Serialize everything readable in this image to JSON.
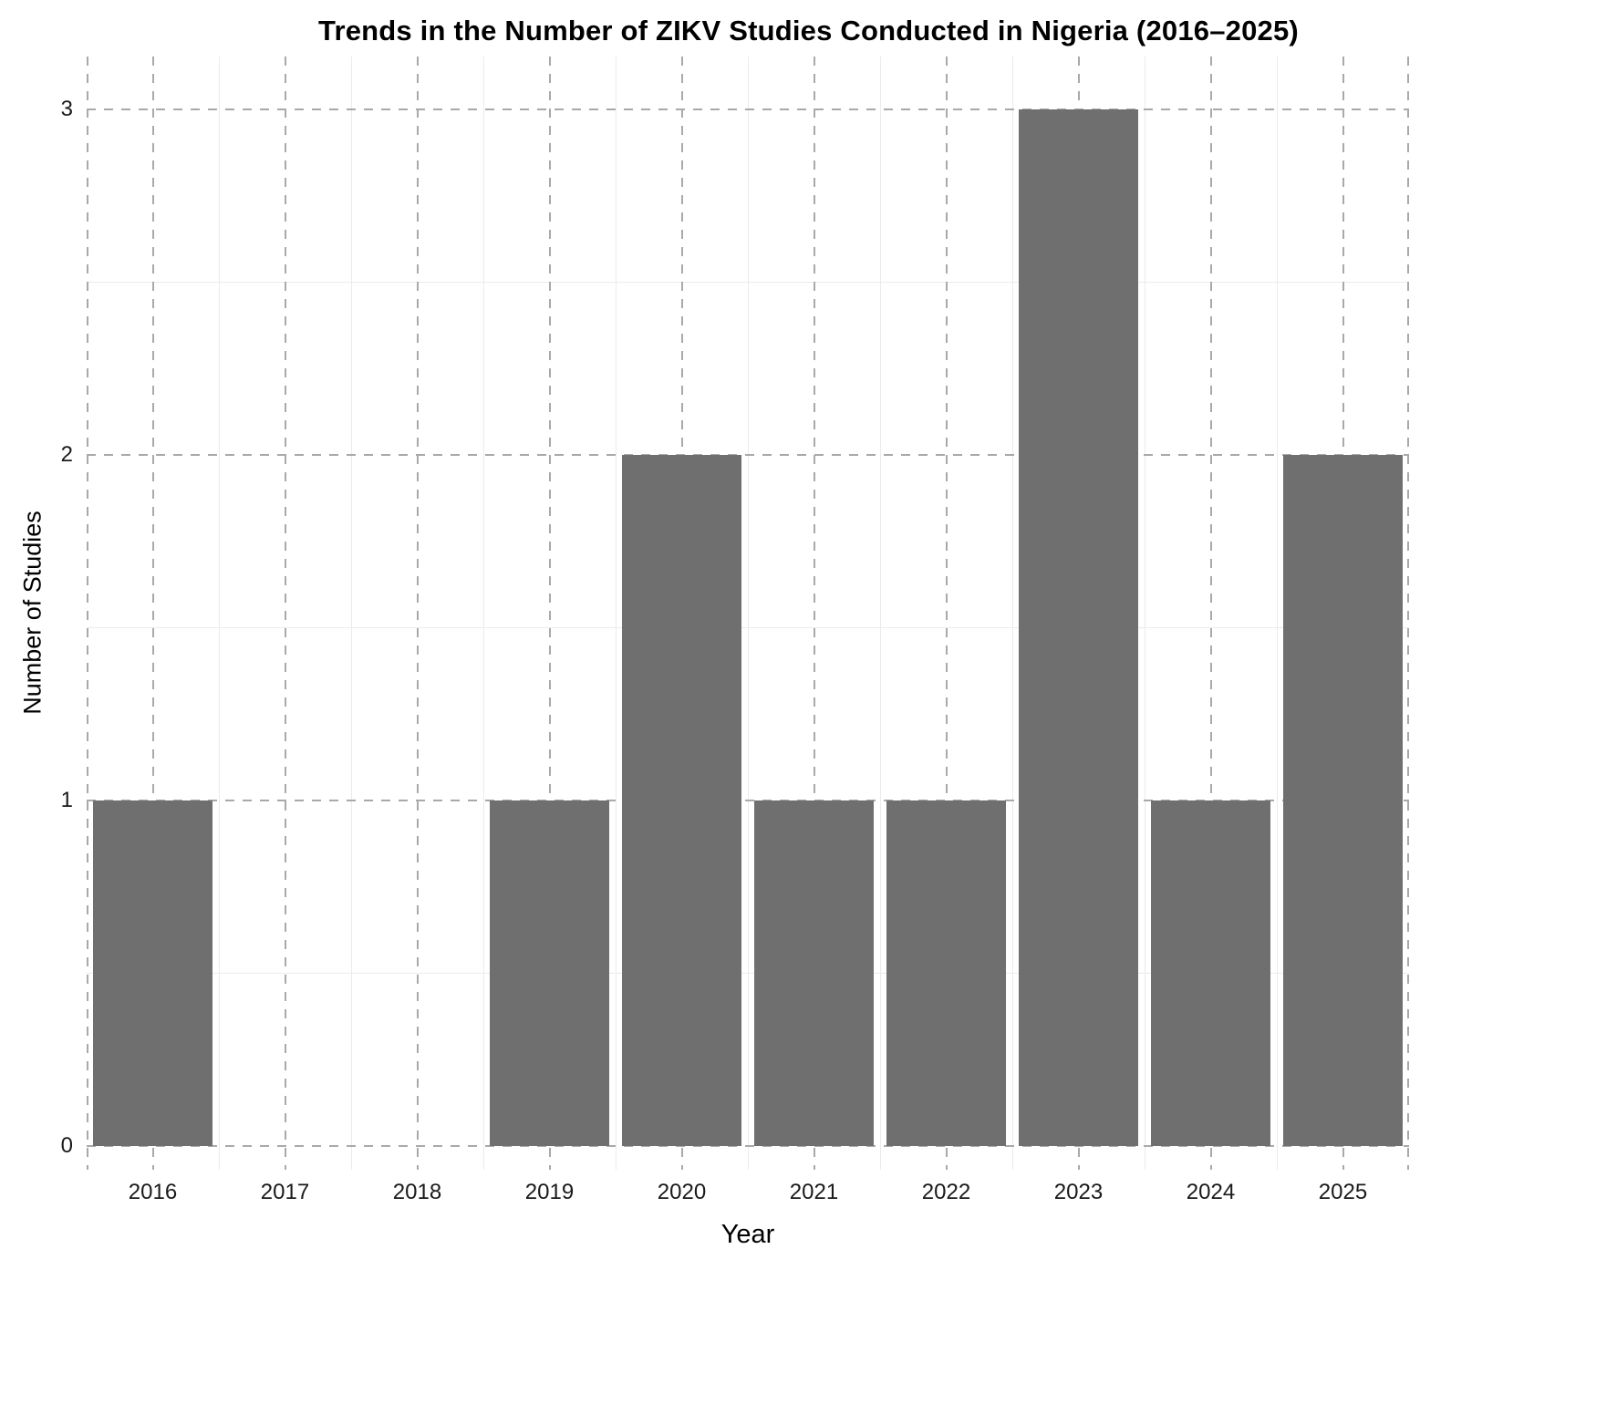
{
  "chart_data": {
    "type": "bar",
    "title": "Trends in the Number of ZIKV Studies Conducted in Nigeria (2016–2025)",
    "xlabel": "Year",
    "ylabel": "Number of Studies",
    "categories": [
      "2016",
      "2017",
      "2018",
      "2019",
      "2020",
      "2021",
      "2022",
      "2023",
      "2024",
      "2025"
    ],
    "values": [
      1,
      0,
      0,
      1,
      2,
      1,
      1,
      3,
      1,
      2
    ],
    "yticks": [
      0,
      1,
      2,
      3
    ],
    "ylim": [
      0,
      3.15
    ],
    "grid": "dashed major gridlines both axes, faint solid minor gridlines",
    "legend": "none",
    "colors": {
      "bar": "#6f6f6f",
      "grid_major": "#a9a9a9",
      "grid_minor": "#ebebeb",
      "background": "#ffffff",
      "text": "#1a1a1a"
    }
  }
}
